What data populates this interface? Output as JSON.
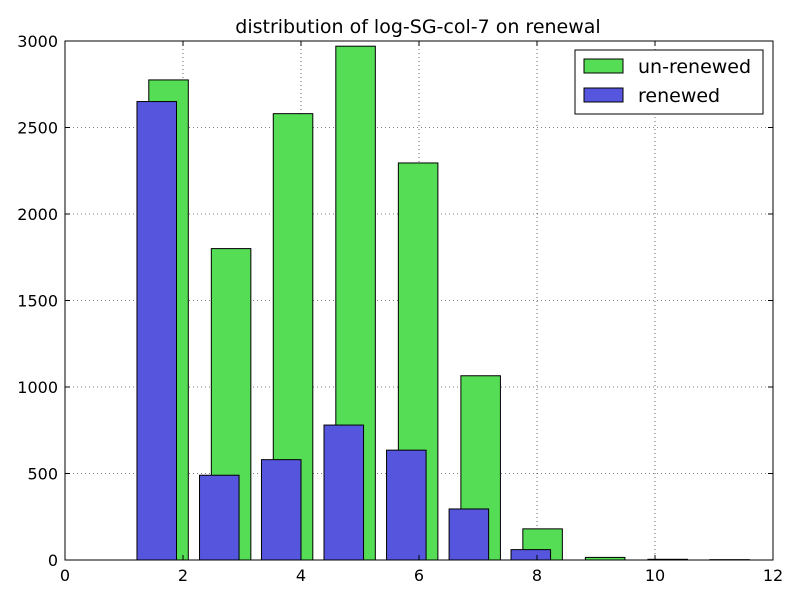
{
  "chart_data": {
    "type": "bar",
    "title": "distribution of log-SG-col-7 on renewal",
    "xlabel": "",
    "ylabel": "",
    "xlim": [
      0,
      12
    ],
    "ylim": [
      0,
      3000
    ],
    "xticks": [
      0,
      2,
      4,
      6,
      8,
      10,
      12
    ],
    "yticks": [
      0,
      500,
      1000,
      1500,
      2000,
      2500,
      3000
    ],
    "grid": true,
    "legend_position": "top-right",
    "series": [
      {
        "name": "un-renewed",
        "color": "#55dd55",
        "bars": [
          {
            "x0": 1.42,
            "x1": 2.09,
            "value": 2775
          },
          {
            "x0": 2.48,
            "x1": 3.15,
            "value": 1800
          },
          {
            "x0": 3.53,
            "x1": 4.2,
            "value": 2580
          },
          {
            "x0": 4.59,
            "x1": 5.26,
            "value": 2970
          },
          {
            "x0": 5.65,
            "x1": 6.32,
            "value": 2295
          },
          {
            "x0": 6.71,
            "x1": 7.38,
            "value": 1065
          },
          {
            "x0": 7.76,
            "x1": 8.43,
            "value": 180
          },
          {
            "x0": 8.82,
            "x1": 9.49,
            "value": 15
          },
          {
            "x0": 9.88,
            "x1": 10.55,
            "value": 4
          },
          {
            "x0": 10.93,
            "x1": 11.6,
            "value": 2
          }
        ]
      },
      {
        "name": "renewed",
        "color": "#5555dd",
        "bars": [
          {
            "x0": 1.22,
            "x1": 1.89,
            "value": 2650
          },
          {
            "x0": 2.28,
            "x1": 2.95,
            "value": 490
          },
          {
            "x0": 3.33,
            "x1": 4.0,
            "value": 580
          },
          {
            "x0": 4.39,
            "x1": 5.06,
            "value": 780
          },
          {
            "x0": 5.45,
            "x1": 6.12,
            "value": 635
          },
          {
            "x0": 6.51,
            "x1": 7.18,
            "value": 295
          },
          {
            "x0": 7.56,
            "x1": 8.23,
            "value": 60
          },
          {
            "x0": 8.62,
            "x1": 9.29,
            "value": 0
          },
          {
            "x0": 9.68,
            "x1": 10.35,
            "value": 0
          },
          {
            "x0": 10.73,
            "x1": 11.4,
            "value": 0
          }
        ]
      }
    ]
  }
}
